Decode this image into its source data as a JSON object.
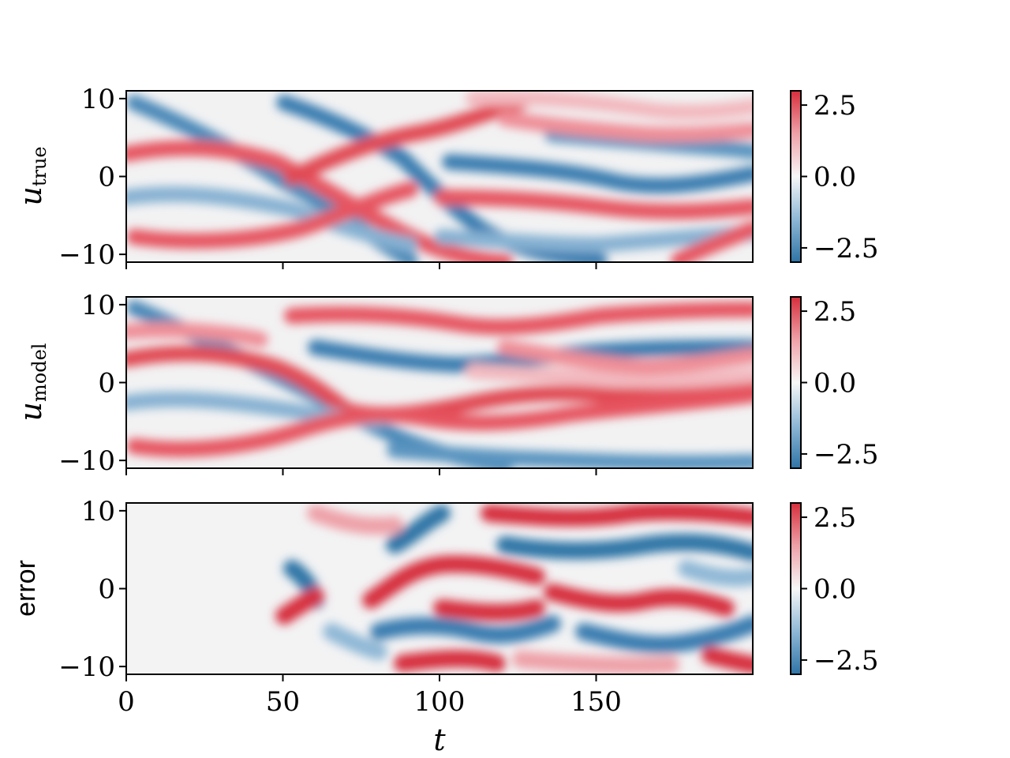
{
  "chart_data": [
    {
      "type": "heatmap",
      "ylabel_main": "u",
      "ylabel_sub": "true",
      "xlim": [
        0,
        200
      ],
      "ylim": [
        -11,
        11
      ],
      "yticks": [
        {
          "v": 10,
          "label": "10"
        },
        {
          "v": 0,
          "label": "0"
        },
        {
          "v": -10,
          "label": "−10"
        }
      ],
      "xticks": [
        0,
        50,
        100,
        150
      ],
      "colorbar": {
        "range": [
          -3,
          3
        ],
        "ticks": [
          {
            "v": 2.5,
            "label": "2.5"
          },
          {
            "v": 0,
            "label": "0.0"
          },
          {
            "v": -2.5,
            "label": "−2.5"
          }
        ]
      }
    },
    {
      "type": "heatmap",
      "ylabel_main": "u",
      "ylabel_sub": "model",
      "xlim": [
        0,
        200
      ],
      "ylim": [
        -11,
        11
      ],
      "yticks": [
        {
          "v": 10,
          "label": "10"
        },
        {
          "v": 0,
          "label": "0"
        },
        {
          "v": -10,
          "label": "−10"
        }
      ],
      "xticks": [
        0,
        50,
        100,
        150
      ],
      "colorbar": {
        "range": [
          -3,
          3
        ],
        "ticks": [
          {
            "v": 2.5,
            "label": "2.5"
          },
          {
            "v": 0,
            "label": "0.0"
          },
          {
            "v": -2.5,
            "label": "−2.5"
          }
        ]
      }
    },
    {
      "type": "heatmap",
      "ylabel_plain": "error",
      "xlabel": "t",
      "xlim": [
        0,
        200
      ],
      "ylim": [
        -11,
        11
      ],
      "yticks": [
        {
          "v": 10,
          "label": "10"
        },
        {
          "v": 0,
          "label": "0"
        },
        {
          "v": -10,
          "label": "−10"
        }
      ],
      "xticks": [
        {
          "v": 0,
          "label": "0"
        },
        {
          "v": 50,
          "label": "50"
        },
        {
          "v": 100,
          "label": "100"
        },
        {
          "v": 150,
          "label": "150"
        }
      ],
      "colorbar": {
        "range": [
          -3,
          3
        ],
        "ticks": [
          {
            "v": 2.5,
            "label": "2.5"
          },
          {
            "v": 0,
            "label": "0.0"
          },
          {
            "v": -2.5,
            "label": "−2.5"
          }
        ]
      }
    }
  ],
  "colors": {
    "positive": "#d62f3c",
    "neutral": "#f7f7f7",
    "negative": "#2f74a6"
  }
}
